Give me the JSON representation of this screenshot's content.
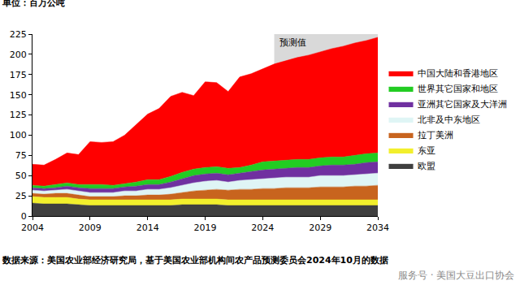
{
  "chart_data": {
    "type": "area",
    "stacked": true,
    "ylabel": "单位：百万公吨",
    "source": "数据来源：美国农业部经济研究局，基于美国农业部机构间农产品预测委员会2024年10月的数据",
    "watermark": "服务号 · 美国大豆出口协会",
    "shaded_region": {
      "label": "预测值",
      "x0": 2025,
      "x1": 2034
    },
    "x": [
      2004,
      2005,
      2006,
      2007,
      2008,
      2009,
      2010,
      2011,
      2012,
      2013,
      2014,
      2015,
      2016,
      2017,
      2018,
      2019,
      2020,
      2021,
      2022,
      2023,
      2024,
      2025,
      2026,
      2027,
      2028,
      2029,
      2030,
      2031,
      2032,
      2033,
      2034
    ],
    "xlim": [
      2004,
      2034
    ],
    "xticks": [
      2004,
      2009,
      2014,
      2019,
      2024,
      2029,
      2034
    ],
    "ylim": [
      0,
      225
    ],
    "yticks": [
      0,
      25,
      50,
      75,
      100,
      125,
      150,
      175,
      200,
      225
    ],
    "grid": false,
    "legend": "right",
    "series": [
      {
        "name": "欧盟",
        "color": "#3f3f3f",
        "values": [
          16,
          15,
          15,
          15,
          14,
          13,
          13,
          13,
          13,
          13,
          13,
          13,
          13,
          14,
          14,
          14,
          14,
          13,
          13,
          13,
          13,
          13,
          13,
          13,
          13,
          13,
          13,
          13,
          13,
          13,
          13
        ]
      },
      {
        "name": "东亚",
        "color": "#f2ef2c",
        "values": [
          8,
          8,
          8,
          8,
          7,
          7,
          7,
          7,
          7,
          7,
          7,
          7,
          7,
          7,
          7,
          7,
          7,
          7,
          7,
          7,
          7,
          7,
          7,
          7,
          7,
          7,
          7,
          7,
          7,
          7,
          7
        ]
      },
      {
        "name": "拉丁美洲",
        "color": "#c8641e",
        "values": [
          4,
          4,
          5,
          5,
          5,
          4,
          4,
          4,
          5,
          5,
          6,
          6,
          7,
          8,
          10,
          11,
          12,
          12,
          13,
          13,
          14,
          14,
          15,
          15,
          15,
          16,
          16,
          16,
          17,
          17,
          18
        ]
      },
      {
        "name": "北非及中东地区",
        "color": "#dff5f5",
        "values": [
          4,
          4,
          4,
          5,
          5,
          5,
          5,
          5,
          6,
          6,
          7,
          7,
          8,
          9,
          10,
          11,
          11,
          10,
          11,
          12,
          12,
          13,
          13,
          13,
          13,
          14,
          14,
          14,
          14,
          15,
          15
        ]
      },
      {
        "name": "亚洲其它国家及大洋洲",
        "color": "#7030a0",
        "values": [
          3,
          3,
          3,
          4,
          4,
          5,
          5,
          5,
          5,
          6,
          6,
          6,
          7,
          8,
          9,
          9,
          9,
          9,
          9,
          10,
          11,
          11,
          11,
          12,
          12,
          12,
          13,
          13,
          13,
          14,
          14
        ]
      },
      {
        "name": "世界其它国家和地区",
        "color": "#22cc22",
        "values": [
          3,
          3,
          4,
          4,
          4,
          5,
          5,
          4,
          4,
          5,
          6,
          6,
          7,
          8,
          8,
          8,
          8,
          8,
          7,
          8,
          10,
          10,
          10,
          10,
          10,
          10,
          10,
          10,
          11,
          11,
          11
        ]
      },
      {
        "name": "中国大陆和香港地区",
        "color": "#ff0000",
        "values": [
          26,
          26,
          31,
          37,
          37,
          53,
          52,
          54,
          60,
          71,
          81,
          88,
          99,
          99,
          91,
          106,
          104,
          95,
          112,
          113,
          115,
          120,
          123,
          126,
          129,
          131,
          134,
          137,
          139,
          140,
          143
        ]
      }
    ]
  }
}
